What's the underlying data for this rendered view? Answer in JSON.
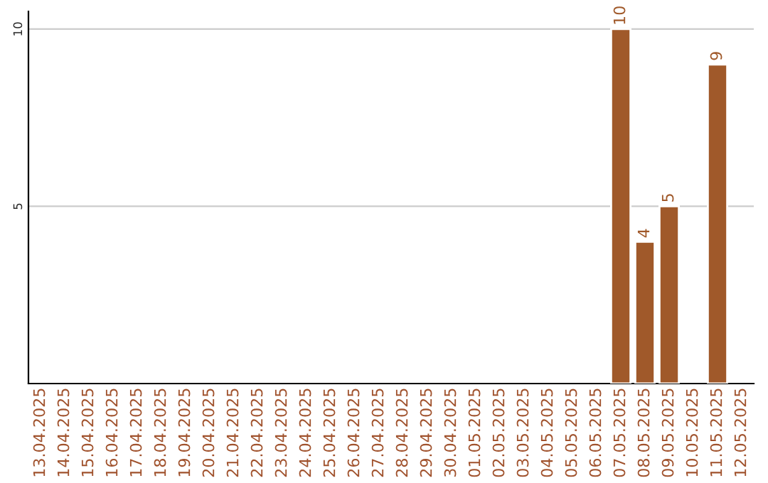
{
  "chart_data": {
    "type": "bar",
    "categories": [
      "13.04.2025",
      "14.04.2025",
      "15.04.2025",
      "16.04.2025",
      "17.04.2025",
      "18.04.2025",
      "19.04.2025",
      "20.04.2025",
      "21.04.2025",
      "22.04.2025",
      "23.04.2025",
      "24.04.2025",
      "25.04.2025",
      "26.04.2025",
      "27.04.2025",
      "28.04.2025",
      "29.04.2025",
      "30.04.2025",
      "01.05.2025",
      "02.05.2025",
      "03.05.2025",
      "04.05.2025",
      "05.05.2025",
      "06.05.2025",
      "07.05.2025",
      "08.05.2025",
      "09.05.2025",
      "10.05.2025",
      "11.05.2025",
      "12.05.2025"
    ],
    "values": [
      null,
      null,
      null,
      null,
      null,
      null,
      null,
      null,
      null,
      null,
      null,
      null,
      null,
      null,
      null,
      null,
      null,
      null,
      null,
      null,
      null,
      null,
      null,
      null,
      10,
      4,
      5,
      null,
      9,
      null
    ],
    "color": "#a0592a",
    "ylim": [
      0,
      10.5
    ],
    "yticks": [
      5,
      10
    ],
    "grid": "y",
    "data_labels": true
  }
}
